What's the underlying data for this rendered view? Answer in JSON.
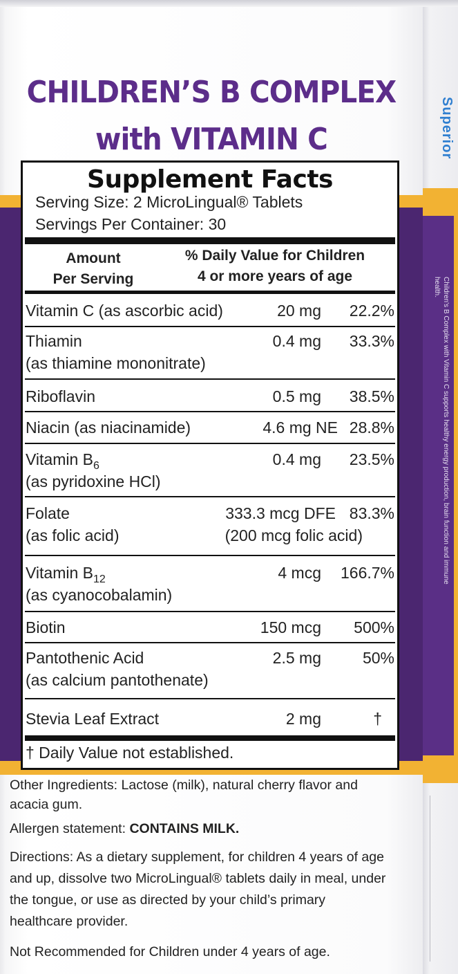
{
  "title": {
    "line1": "CHILDREN’S B  COMPLEX",
    "line2": "with VITAMIN C"
  },
  "side_panel": {
    "brand": "Superior",
    "text": "Children's B Complex with Vitamin C supports healthy energy production, brain function and immune health."
  },
  "facts": {
    "heading": "Supplement Facts",
    "serving_size": "Serving Size: 2 MicroLingual® Tablets",
    "servings_per_container": "Servings Per Container: 30",
    "column_amount_line1": "Amount",
    "column_amount_line2": "Per Serving",
    "column_dv_line1": "% Daily Value for Children",
    "column_dv_line2": "4 or more years of age",
    "rows": [
      {
        "name": "Vitamin C (as ascorbic acid)",
        "amount": "20 mg",
        "dv": "22.2%"
      },
      {
        "name": "Thiamin",
        "name_line2": "(as thiamine mononitrate)",
        "amount": "0.4 mg",
        "dv": "33.3%"
      },
      {
        "name": "Riboflavin",
        "amount": "0.5 mg",
        "dv": "38.5%"
      },
      {
        "name": "Niacin (as niacinamide)",
        "amount": "4.6 mg NE",
        "dv": "28.8%"
      },
      {
        "name": "Vitamin B",
        "name_sub": "6",
        "name_line2": "(as pyridoxine  HCl)",
        "amount": "0.4 mg",
        "dv": "23.5%"
      },
      {
        "name": "Folate",
        "name_line2": "(as folic acid)",
        "amount": "333.3 mcg DFE",
        "amount_line2": "(200 mcg folic acid)",
        "dv": "83.3%"
      },
      {
        "name": "Vitamin B",
        "name_sub": "12",
        "name_line2": "(as cyanocobalamin)",
        "amount": "4 mcg",
        "dv": "166.7%"
      },
      {
        "name": "Biotin",
        "amount": "150 mcg",
        "dv": "500%"
      },
      {
        "name": "Pantothenic Acid",
        "name_line2": "(as calcium pantothenate)",
        "amount": "2.5 mg",
        "dv": "50%"
      },
      {
        "name": "Stevia Leaf Extract",
        "amount": "2 mg",
        "dv": "†"
      }
    ],
    "footnote": "† Daily Value not established."
  },
  "other_ingredients": "Other Ingredients: Lactose (milk), natural cherry flavor and acacia gum.",
  "allergen": {
    "label": "Allergen statement: ",
    "value": "CONTAINS MILK."
  },
  "directions": "Directions: As a dietary supplement, for children 4 years of age and up, dissolve two MicroLingual® tablets daily in meal, under the tongue, or use as directed by your child’s primary healthcare provider.",
  "warning": "Not Recommended for Children under 4 years of age.",
  "colors": {
    "title_purple": "#5c2d8a",
    "band_purple": "#4b2670",
    "band_gold": "#f2b233",
    "brand_blue": "#2f7fd0"
  }
}
